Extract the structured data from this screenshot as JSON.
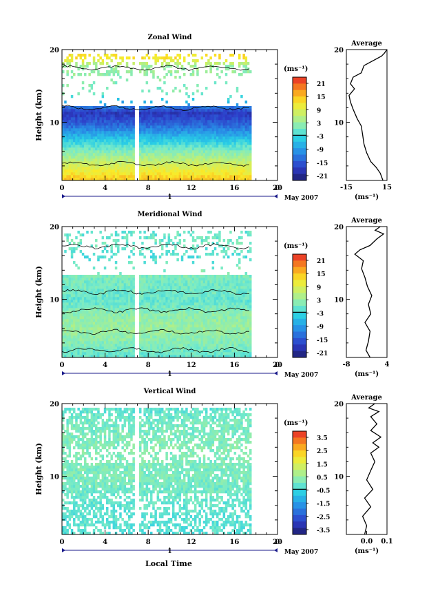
{
  "footer": {
    "x_title": "Local Time"
  },
  "chart_data": [
    {
      "type": "heatmap",
      "panel": "zonal",
      "title": "Zonal Wind",
      "ylabel": "Height (km)",
      "ylim": [
        2,
        20
      ],
      "xlim": [
        0,
        20
      ],
      "x_ticks": [
        "0",
        "4",
        "8",
        "12",
        "16",
        "20",
        "0"
      ],
      "y_ticks": [
        "20",
        "10"
      ],
      "date_axis": {
        "tick": "1",
        "label": "May 2007"
      },
      "data_extent_hours": 17.5,
      "gap_hour": 6.8,
      "colorbar": {
        "unit": "(ms⁻¹)",
        "ticks": [
          "21",
          "15",
          "9",
          "3",
          "-3",
          "-9",
          "-15",
          "-21"
        ],
        "min": -24,
        "max": 24
      },
      "field_profile": {
        "heights": [
          2.5,
          4,
          6,
          8,
          10,
          11.5,
          14,
          16.5,
          18,
          19
        ],
        "values": [
          14,
          9,
          2,
          -6,
          -15,
          -19,
          0,
          2,
          3,
          12
        ]
      },
      "average": {
        "title": "Average",
        "xlabel": "(ms⁻¹)",
        "xlim": [
          -15,
          15
        ],
        "x_ticks": [
          "-15",
          "15"
        ],
        "y_ticks": [
          "20",
          "10"
        ],
        "profile": [
          [
            12,
            2.0
          ],
          [
            10,
            3.0
          ],
          [
            7,
            3.8
          ],
          [
            3,
            4.6
          ],
          [
            0,
            5.8
          ],
          [
            -2,
            7.0
          ],
          [
            -3,
            8.3
          ],
          [
            -4,
            9.5
          ],
          [
            -7,
            10.5
          ],
          [
            -10,
            11.8
          ],
          [
            -12,
            12.8
          ],
          [
            -13,
            13.7
          ],
          [
            -9,
            14.6
          ],
          [
            -12,
            15.3
          ],
          [
            -10,
            16.2
          ],
          [
            -4,
            16.8
          ],
          [
            -2,
            17.8
          ],
          [
            5,
            18.5
          ],
          [
            11,
            19.1
          ],
          [
            13,
            19.5
          ],
          [
            15,
            20.0
          ]
        ]
      }
    },
    {
      "type": "heatmap",
      "panel": "meridional",
      "title": "Meridional Wind",
      "ylabel": "Height (km)",
      "ylim": [
        2,
        20
      ],
      "xlim": [
        0,
        20
      ],
      "x_ticks": [
        "0",
        "4",
        "8",
        "12",
        "16",
        "20",
        "0"
      ],
      "y_ticks": [
        "20",
        "10"
      ],
      "date_axis": {
        "tick": "1",
        "label": "May 2007"
      },
      "data_extent_hours": 17.5,
      "gap_hour": 6.8,
      "colorbar": {
        "unit": "(ms⁻¹)",
        "ticks": [
          "21",
          "15",
          "9",
          "3",
          "-3",
          "-9",
          "-15",
          "-21"
        ],
        "min": -24,
        "max": 24
      },
      "field_profile": {
        "heights": [
          2.5,
          4,
          6,
          8,
          10,
          12,
          14,
          16,
          18,
          19
        ],
        "values": [
          -1,
          1,
          3,
          2,
          -1,
          0,
          1,
          -2,
          0,
          -1
        ]
      },
      "average": {
        "title": "Average",
        "xlabel": "(ms⁻¹)",
        "xlim": [
          -8,
          4
        ],
        "x_ticks": [
          "-8",
          "4"
        ],
        "y_ticks": [
          "20",
          "10"
        ],
        "profile": [
          [
            -1.0,
            2.0
          ],
          [
            -2.2,
            3.0
          ],
          [
            -1.5,
            4.2
          ],
          [
            -1.0,
            5.6
          ],
          [
            -2.5,
            6.8
          ],
          [
            -0.8,
            8.0
          ],
          [
            -1.5,
            9.3
          ],
          [
            -0.5,
            10.5
          ],
          [
            -1.8,
            11.8
          ],
          [
            -2.5,
            13.0
          ],
          [
            -3.5,
            14.2
          ],
          [
            -3.0,
            15.3
          ],
          [
            -5.5,
            16.2
          ],
          [
            -4.0,
            16.8
          ],
          [
            -1.0,
            17.4
          ],
          [
            1.0,
            18.3
          ],
          [
            3.0,
            19.0
          ],
          [
            0.5,
            19.5
          ],
          [
            2.0,
            20.0
          ]
        ]
      }
    },
    {
      "type": "heatmap",
      "panel": "vertical",
      "title": "Vertical Wind",
      "ylabel": "Height (km)",
      "ylim": [
        2,
        20
      ],
      "xlim": [
        0,
        20
      ],
      "x_ticks": [
        "0",
        "4",
        "8",
        "12",
        "16",
        "20",
        "0"
      ],
      "y_ticks": [
        "20",
        "10"
      ],
      "date_axis": {
        "tick": "1",
        "label": "May 2007"
      },
      "data_extent_hours": 17.5,
      "gap_hour": 6.8,
      "colorbar": {
        "unit": "(ms⁻¹)",
        "ticks": [
          "3.5",
          "2.5",
          "1.5",
          "0.5",
          "-0.5",
          "-1.5",
          "-2.5",
          "-3.5"
        ],
        "min": -4,
        "max": 4
      },
      "field_profile": {
        "heights": [
          2.5,
          6,
          10,
          14,
          18,
          19.5
        ],
        "values": [
          -0.3,
          -0.2,
          0.1,
          0.2,
          0.0,
          -0.2
        ]
      },
      "average": {
        "title": "Average",
        "xlabel": "(ms⁻¹)",
        "xlim": [
          -0.1,
          0.1
        ],
        "x_ticks": [
          "0.0",
          "0.1"
        ],
        "y_ticks": [
          "20",
          "10"
        ],
        "profile": [
          [
            -0.01,
            2.0
          ],
          [
            0.0,
            3.2
          ],
          [
            -0.02,
            4.5
          ],
          [
            0.02,
            5.8
          ],
          [
            -0.01,
            7.0
          ],
          [
            0.03,
            8.2
          ],
          [
            0.0,
            9.5
          ],
          [
            0.02,
            10.8
          ],
          [
            0.04,
            12.0
          ],
          [
            0.02,
            13.2
          ],
          [
            0.06,
            14.0
          ],
          [
            0.03,
            14.6
          ],
          [
            0.07,
            15.4
          ],
          [
            0.02,
            16.3
          ],
          [
            0.05,
            17.2
          ],
          [
            0.02,
            18.2
          ],
          [
            0.06,
            18.9
          ],
          [
            0.01,
            19.4
          ],
          [
            0.04,
            20.0
          ]
        ]
      }
    }
  ]
}
